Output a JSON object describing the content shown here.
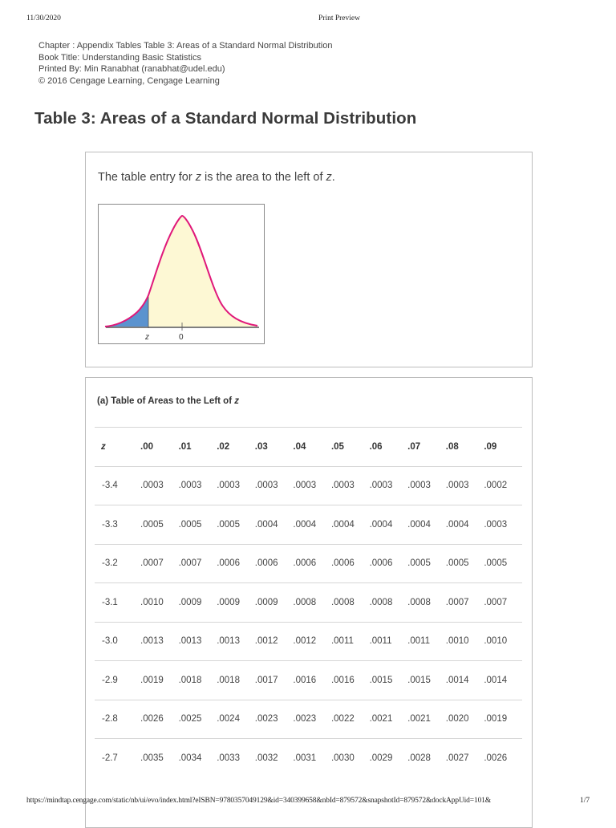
{
  "print_header": {
    "date": "11/30/2020",
    "title": "Print Preview"
  },
  "meta": {
    "chapter": "Chapter : Appendix Tables Table 3: Areas of a Standard Normal Distribution",
    "book_title": "Book Title: Understanding Basic Statistics",
    "printed_by": "Printed By: Min Ranabhat (ranabhat@udel.edu)",
    "copyright": "© 2016 Cengage Learning, Cengage Learning"
  },
  "page_title": "Table 3: Areas of a Standard Normal Distribution",
  "intro": {
    "text_1": "The table entry for ",
    "var_1": "z",
    "text_2": " is the area to the left of ",
    "var_2": "z",
    "text_3": "."
  },
  "figure": {
    "label_z": "z",
    "label_zero": "0",
    "colors": {
      "curve": "#e0197a",
      "left_area": "#5b93cf",
      "right_area": "#fdf8d4",
      "axis": "#555555"
    }
  },
  "table": {
    "caption_text": "(a) Table of Areas to the Left of ",
    "caption_var": "z",
    "headers": [
      "z",
      ".00",
      ".01",
      ".02",
      ".03",
      ".04",
      ".05",
      ".06",
      ".07",
      ".08",
      ".09"
    ],
    "rows": [
      [
        "-3.4",
        ".0003",
        ".0003",
        ".0003",
        ".0003",
        ".0003",
        ".0003",
        ".0003",
        ".0003",
        ".0003",
        ".0002"
      ],
      [
        "-3.3",
        ".0005",
        ".0005",
        ".0005",
        ".0004",
        ".0004",
        ".0004",
        ".0004",
        ".0004",
        ".0004",
        ".0003"
      ],
      [
        "-3.2",
        ".0007",
        ".0007",
        ".0006",
        ".0006",
        ".0006",
        ".0006",
        ".0006",
        ".0005",
        ".0005",
        ".0005"
      ],
      [
        "-3.1",
        ".0010",
        ".0009",
        ".0009",
        ".0009",
        ".0008",
        ".0008",
        ".0008",
        ".0008",
        ".0007",
        ".0007"
      ],
      [
        "-3.0",
        ".0013",
        ".0013",
        ".0013",
        ".0012",
        ".0012",
        ".0011",
        ".0011",
        ".0011",
        ".0010",
        ".0010"
      ],
      [
        "-2.9",
        ".0019",
        ".0018",
        ".0018",
        ".0017",
        ".0016",
        ".0016",
        ".0015",
        ".0015",
        ".0014",
        ".0014"
      ],
      [
        "-2.8",
        ".0026",
        ".0025",
        ".0024",
        ".0023",
        ".0023",
        ".0022",
        ".0021",
        ".0021",
        ".0020",
        ".0019"
      ],
      [
        "-2.7",
        ".0035",
        ".0034",
        ".0033",
        ".0032",
        ".0031",
        ".0030",
        ".0029",
        ".0028",
        ".0027",
        ".0026"
      ]
    ]
  },
  "print_footer": {
    "url": "https://mindtap.cengage.com/static/nb/ui/evo/index.html?eISBN=9780357049129&id=340399658&nbId=879572&snapshotId=879572&dockAppUid=101&",
    "page": "1/7"
  }
}
